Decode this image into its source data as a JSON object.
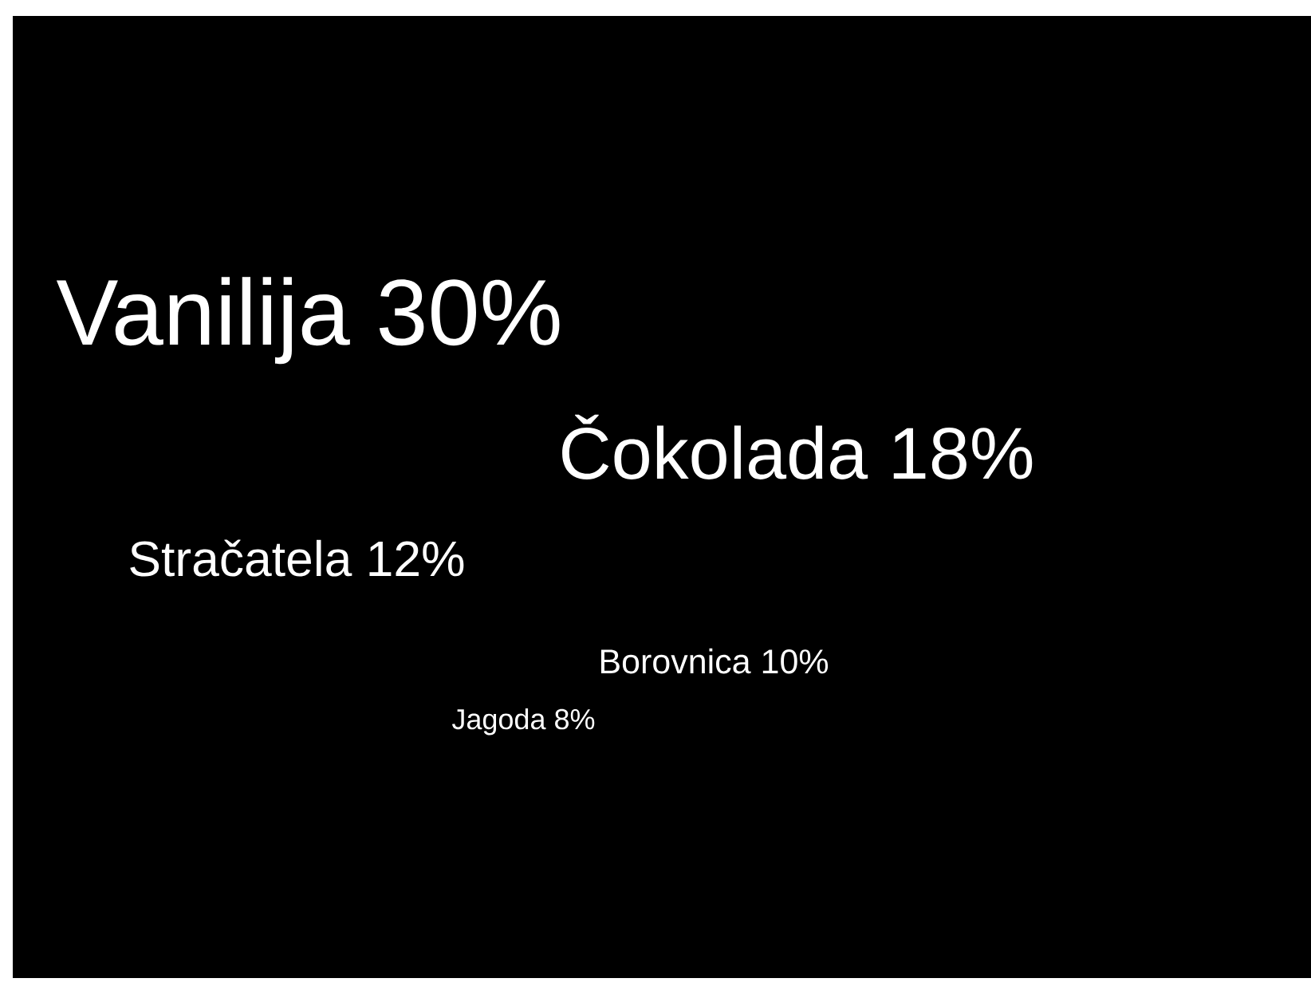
{
  "chart_data": {
    "type": "other",
    "categories": [
      "Vanilija",
      "Čokolada",
      "Stračatela",
      "Borovnica",
      "Jagoda"
    ],
    "values": [
      30,
      18,
      12,
      10,
      8
    ],
    "value_labels": [
      "30%",
      "18%",
      "12%",
      "10%",
      "8%"
    ]
  }
}
